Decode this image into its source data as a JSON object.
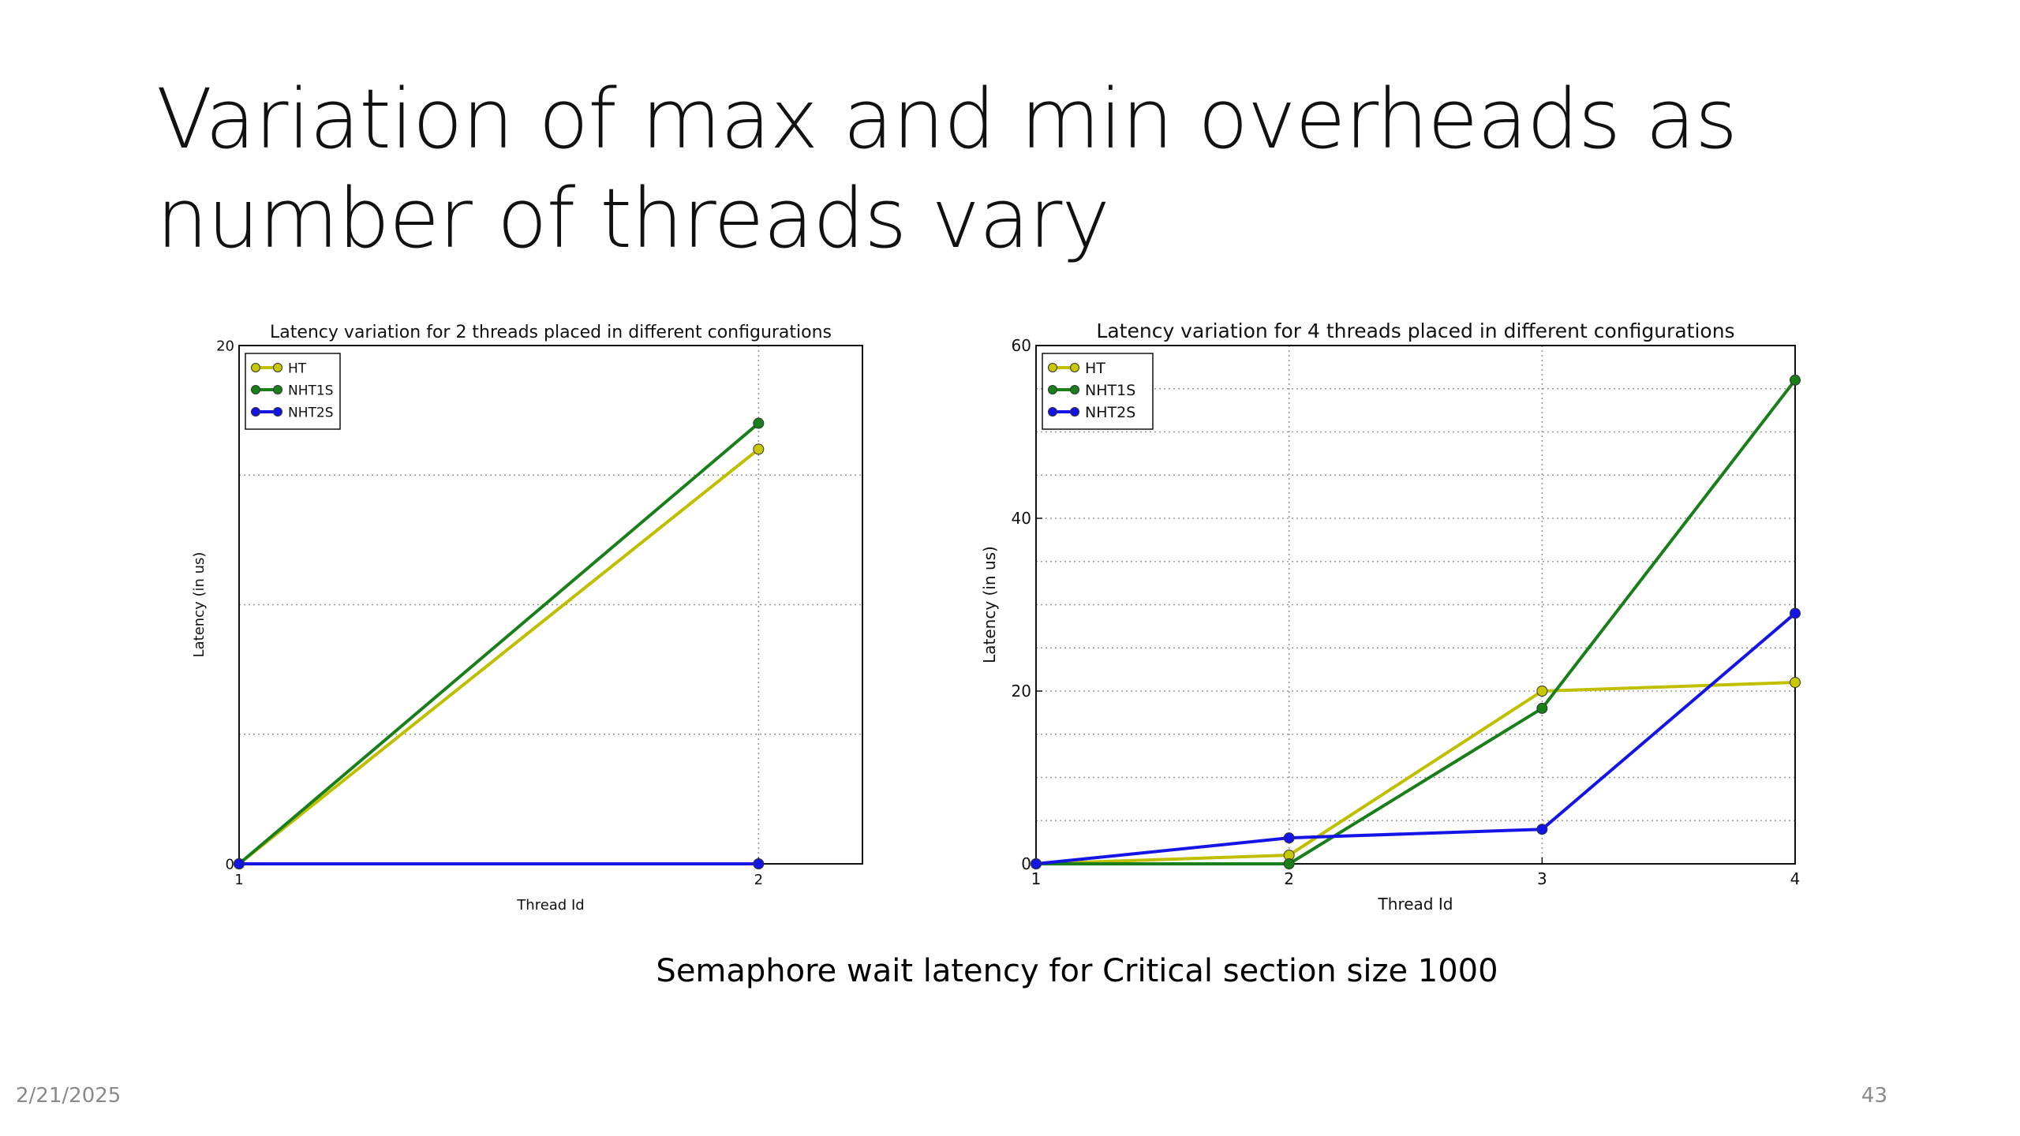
{
  "slide": {
    "title_line1": "Variation of max and min overheads as",
    "title_line2": "number of threads vary",
    "caption": "Semaphore wait latency for Critical section size 1000",
    "date": "2/21/2025",
    "page_number": "43"
  },
  "colors": {
    "HT": "#bfbf00",
    "NHT1S": "#1a7f1a",
    "NHT2S": "#1414e6",
    "marker_HT": "#c8c800"
  },
  "chart_data": [
    {
      "type": "line",
      "title": "Latency variation for 2 threads placed in different configurations",
      "xlabel": "Thread Id",
      "ylabel": "Latency (in us)",
      "xlim": [
        1,
        2.2
      ],
      "ylim": [
        0,
        20
      ],
      "xticks": [
        1,
        2
      ],
      "yticks": [
        0,
        20
      ],
      "y_gridlines": [
        0,
        5,
        10,
        15,
        20
      ],
      "x_gridlines": [
        1,
        2
      ],
      "grid": true,
      "legend_position": "top-left",
      "series": [
        {
          "name": "HT",
          "x": [
            1,
            2
          ],
          "y": [
            0,
            16
          ]
        },
        {
          "name": "NHT1S",
          "x": [
            1,
            2
          ],
          "y": [
            0,
            17
          ]
        },
        {
          "name": "NHT2S",
          "x": [
            1,
            2
          ],
          "y": [
            0,
            0
          ]
        }
      ]
    },
    {
      "type": "line",
      "title": "Latency variation for 4 threads placed in different configurations",
      "xlabel": "Thread Id",
      "ylabel": "Latency (in us)",
      "xlim": [
        1,
        4
      ],
      "ylim": [
        0,
        60
      ],
      "xticks": [
        1,
        2,
        3,
        4
      ],
      "yticks": [
        0,
        20,
        40,
        60
      ],
      "y_gridlines": [
        0,
        5,
        10,
        15,
        20,
        25,
        30,
        35,
        40,
        45,
        50,
        55,
        60
      ],
      "x_gridlines": [
        1,
        2,
        3,
        4
      ],
      "grid": true,
      "legend_position": "top-left",
      "series": [
        {
          "name": "HT",
          "x": [
            1,
            2,
            3,
            4
          ],
          "y": [
            0,
            1,
            20,
            21
          ]
        },
        {
          "name": "NHT1S",
          "x": [
            1,
            2,
            3,
            4
          ],
          "y": [
            0,
            0,
            18,
            56
          ]
        },
        {
          "name": "NHT2S",
          "x": [
            1,
            2,
            3,
            4
          ],
          "y": [
            0,
            3,
            4,
            29
          ]
        }
      ]
    }
  ]
}
